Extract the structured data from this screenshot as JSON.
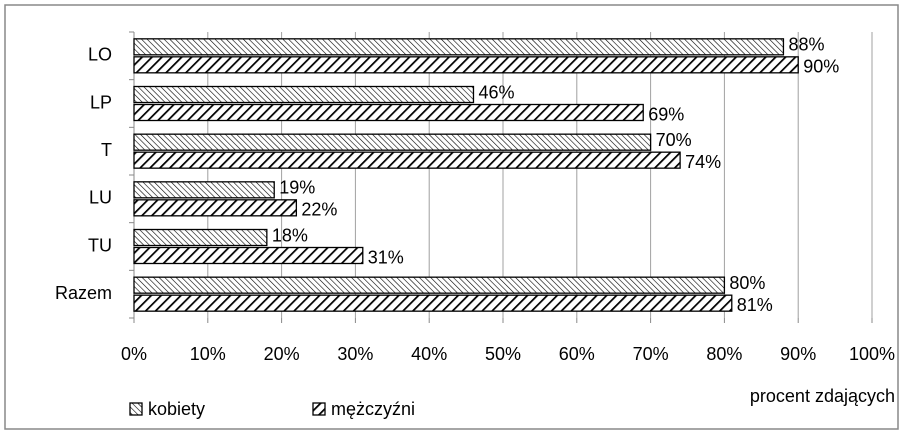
{
  "chart_data": {
    "type": "bar",
    "orientation": "horizontal",
    "categories": [
      "LO",
      "LP",
      "T",
      "LU",
      "TU",
      "Razem"
    ],
    "series": [
      {
        "name": "kobiety",
        "color": "#000000",
        "values": [
          88,
          46,
          70,
          19,
          18,
          80
        ],
        "value_labels": [
          "88%",
          "46%",
          "70%",
          "19%",
          "18%",
          "80%"
        ]
      },
      {
        "name": "mężczyźni",
        "color": "#000000",
        "values": [
          90,
          69,
          74,
          22,
          31,
          81
        ],
        "value_labels": [
          "90%",
          "69%",
          "74%",
          "22%",
          "31%",
          "81%"
        ]
      }
    ],
    "xlabel": "procent zdających",
    "xlim": [
      0,
      100
    ],
    "xticks": [
      {
        "value": 0,
        "label": "0%"
      },
      {
        "value": 10,
        "label": "10%"
      },
      {
        "value": 20,
        "label": "20%"
      },
      {
        "value": 30,
        "label": "30%"
      },
      {
        "value": 40,
        "label": "40%"
      },
      {
        "value": 50,
        "label": "50%"
      },
      {
        "value": 60,
        "label": "60%"
      },
      {
        "value": 70,
        "label": "70%"
      },
      {
        "value": 80,
        "label": "80%"
      },
      {
        "value": 90,
        "label": "90%"
      },
      {
        "value": 100,
        "label": "100%"
      }
    ],
    "grid": true,
    "legend": "bottom-left"
  }
}
